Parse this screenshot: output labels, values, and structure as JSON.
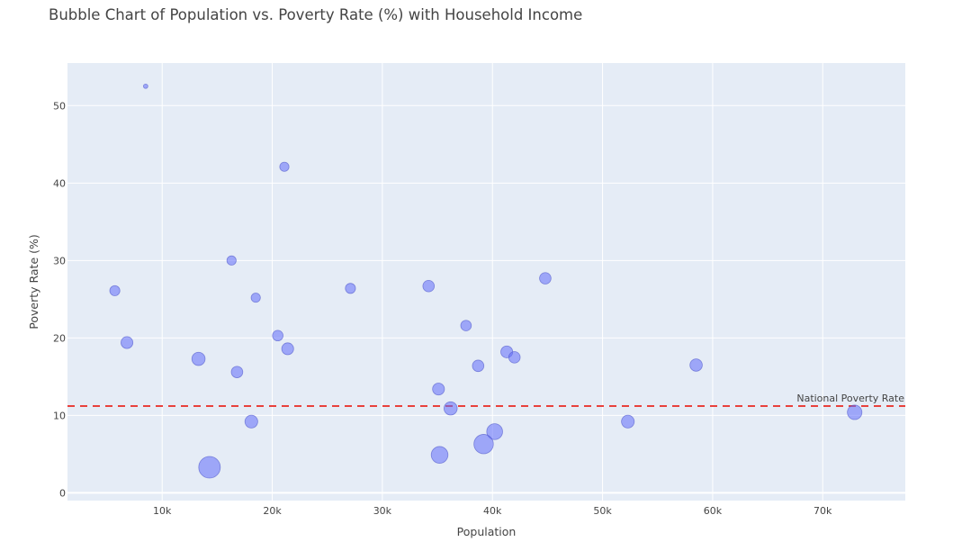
{
  "chart_data": {
    "type": "scatter",
    "title": "Bubble Chart of Population vs. Poverty Rate (%) with Household Income",
    "xlabel": "Population",
    "ylabel": "Poverty Rate (%)",
    "xlim": [
      1400,
      77500
    ],
    "ylim": [
      -1,
      55.5
    ],
    "x_ticks": [
      10000,
      20000,
      30000,
      40000,
      50000,
      60000,
      70000
    ],
    "x_tick_labels": [
      "10k",
      "20k",
      "30k",
      "40k",
      "50k",
      "60k",
      "70k"
    ],
    "y_ticks": [
      0,
      10,
      20,
      30,
      40,
      50
    ],
    "y_tick_labels": [
      "0",
      "10",
      "20",
      "30",
      "40",
      "50"
    ],
    "grid": true,
    "bubble_size_variable": "Household Income",
    "series": [
      {
        "color": "#636efa",
        "points": [
          {
            "x": 8500,
            "y": 52.5,
            "size": 1.0
          },
          {
            "x": 21100,
            "y": 42.1,
            "size": 2.1
          },
          {
            "x": 16300,
            "y": 30.0,
            "size": 2.1
          },
          {
            "x": 5700,
            "y": 26.1,
            "size": 2.3
          },
          {
            "x": 18500,
            "y": 25.2,
            "size": 2.1
          },
          {
            "x": 27100,
            "y": 26.4,
            "size": 2.3
          },
          {
            "x": 34200,
            "y": 26.7,
            "size": 2.6
          },
          {
            "x": 44800,
            "y": 27.7,
            "size": 2.6
          },
          {
            "x": 6800,
            "y": 19.4,
            "size": 2.7
          },
          {
            "x": 20500,
            "y": 20.3,
            "size": 2.4
          },
          {
            "x": 21400,
            "y": 18.6,
            "size": 2.7
          },
          {
            "x": 37600,
            "y": 21.6,
            "size": 2.4
          },
          {
            "x": 41300,
            "y": 18.2,
            "size": 2.7
          },
          {
            "x": 13300,
            "y": 17.3,
            "size": 3.0
          },
          {
            "x": 16800,
            "y": 15.6,
            "size": 2.6
          },
          {
            "x": 38700,
            "y": 16.4,
            "size": 2.6
          },
          {
            "x": 42000,
            "y": 17.5,
            "size": 2.6
          },
          {
            "x": 58500,
            "y": 16.5,
            "size": 2.8
          },
          {
            "x": 35100,
            "y": 13.4,
            "size": 2.7
          },
          {
            "x": 36200,
            "y": 10.9,
            "size": 3.0
          },
          {
            "x": 18100,
            "y": 9.2,
            "size": 2.9
          },
          {
            "x": 52300,
            "y": 9.2,
            "size": 2.9
          },
          {
            "x": 72900,
            "y": 10.4,
            "size": 3.3
          },
          {
            "x": 40200,
            "y": 7.9,
            "size": 3.6
          },
          {
            "x": 39200,
            "y": 6.3,
            "size": 4.4
          },
          {
            "x": 35200,
            "y": 4.9,
            "size": 3.8
          },
          {
            "x": 14300,
            "y": 3.3,
            "size": 4.9
          }
        ]
      }
    ],
    "reference_line": {
      "y": 11.2,
      "label": "National Poverty Rate",
      "color": "#e8413c",
      "style": "dashed"
    }
  },
  "colors": {
    "plot_background": "#e5ecf6",
    "grid": "#ffffff",
    "marker": "#636efa"
  }
}
